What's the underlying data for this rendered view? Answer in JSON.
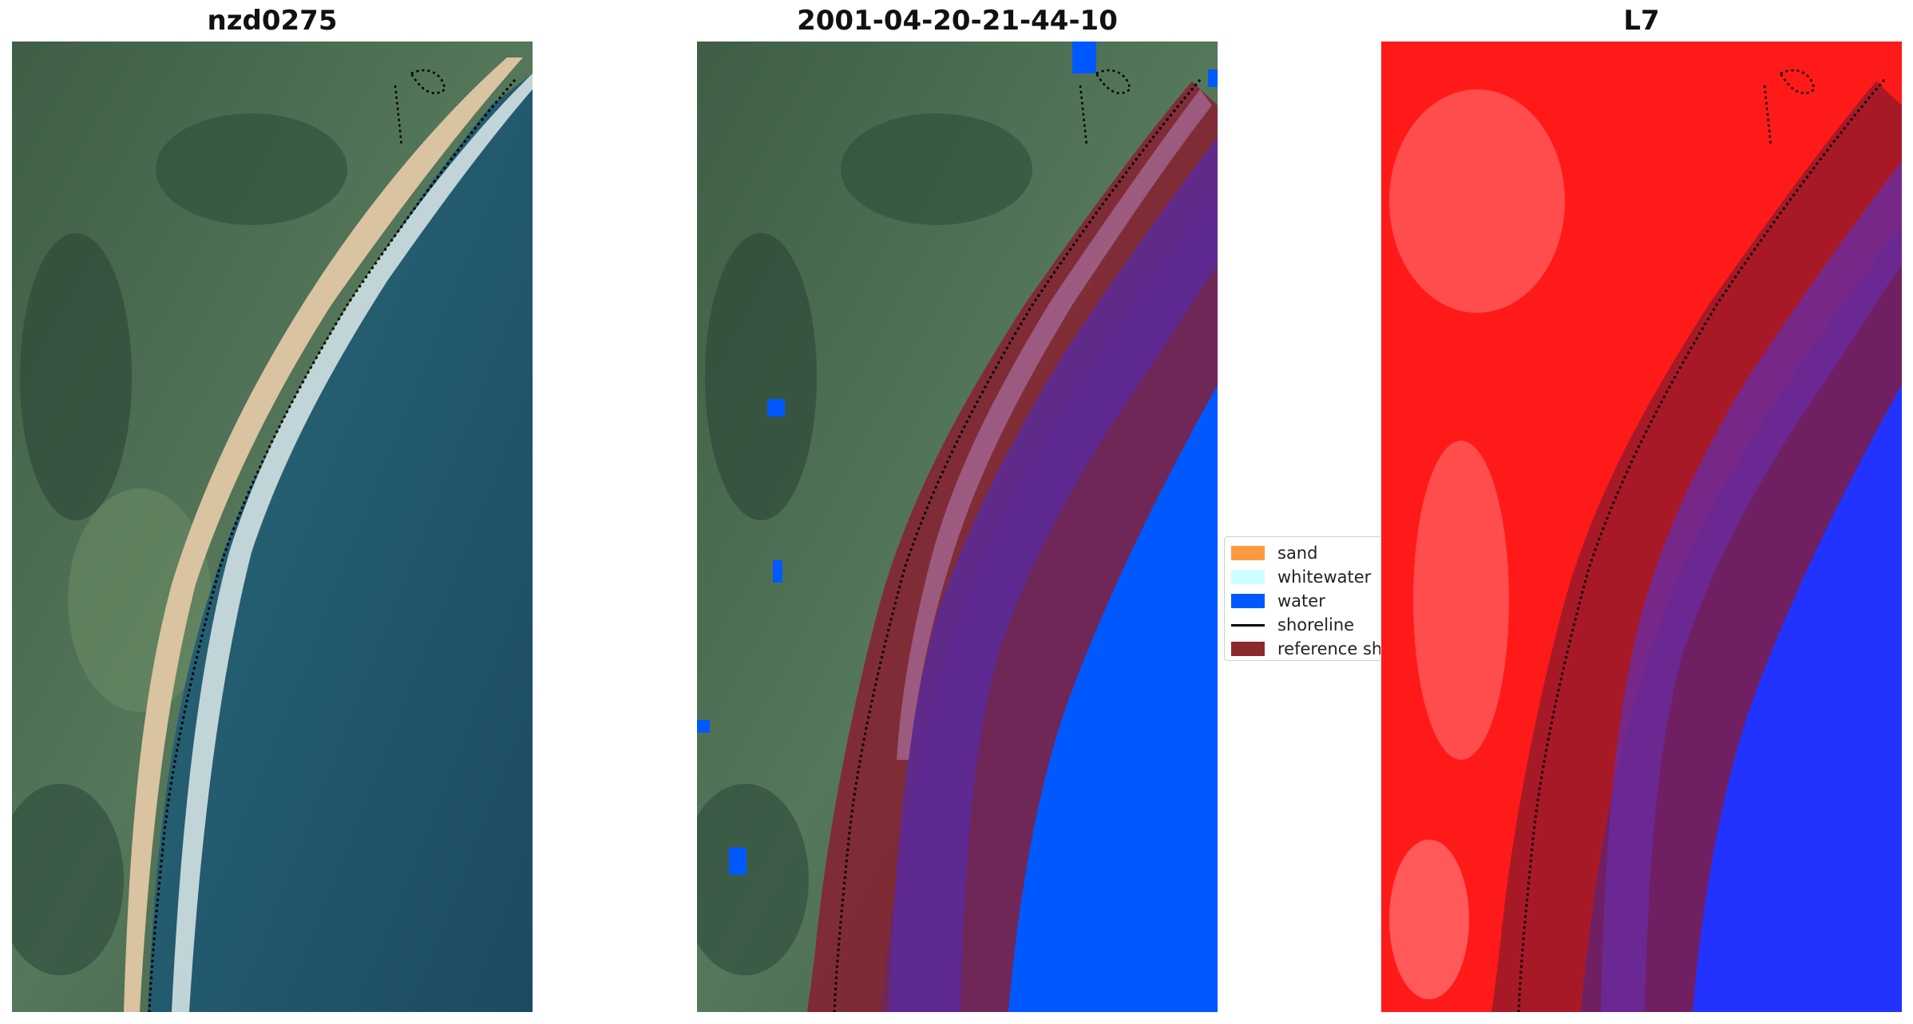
{
  "panels": [
    {
      "title": "nzd0275"
    },
    {
      "title": "2001-04-20-21-44-10"
    },
    {
      "title": "L7"
    }
  ],
  "legend": {
    "items": [
      {
        "label": "sand",
        "color": "#ff9940"
      },
      {
        "label": "whitewater",
        "color": "#ccffff"
      },
      {
        "label": "water",
        "color": "#0059ff"
      },
      {
        "label": "shoreline",
        "color": "#000000"
      },
      {
        "label": "reference sh",
        "color": "#8b2a2e"
      }
    ]
  },
  "colors": {
    "reference_buffer": "#8b1a2e",
    "land_green": "#4d6e4c",
    "sea_blue": "#2c5f74",
    "index_red": "#ff1a1a",
    "index_blue": "#2233ff"
  }
}
